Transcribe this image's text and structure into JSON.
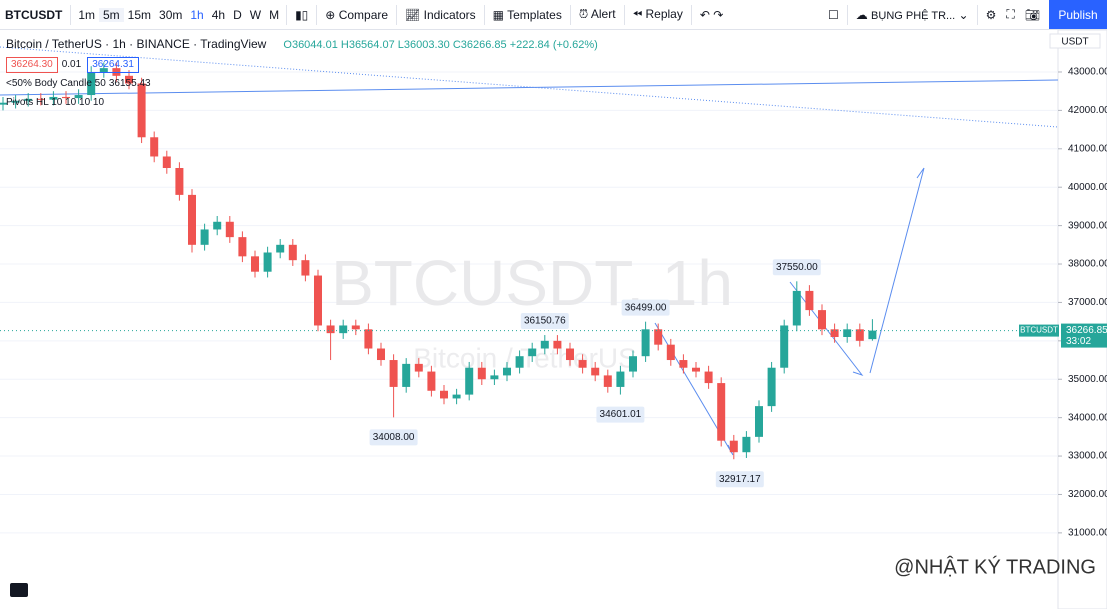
{
  "toolbar": {
    "symbol": "BTCUSDT",
    "intervals": [
      "1m",
      "5m",
      "15m",
      "30m",
      "1h",
      "4h",
      "D",
      "W",
      "M"
    ],
    "compare": "Compare",
    "indicators": "Indicators",
    "templates": "Templates",
    "alert": "Alert",
    "replay": "Replay",
    "layout_name": "BỤNG PHỆ TR...",
    "publish": "Publish"
  },
  "legend": {
    "title": "Bitcoin / TetherUS · 1h · BINANCE · TradingView",
    "ohlc": "O36044.01 H36564.07 L36003.30 C36266.85 +222.84 (+0.62%)",
    "bid": "36264.30",
    "spread": "0.01",
    "ask": "36264.31",
    "indicator1": "<50% Body Candle 50",
    "indicator1_value": "36155.43",
    "indicator2": "Pivots HL 10 10 10 10"
  },
  "watermark": {
    "symbol": "BTCUSDT, 1h",
    "description": "Bitcoin / TetherUS"
  },
  "currency": "USDT",
  "last_price": {
    "symbol": "BTCUSDT",
    "price": "36266.85",
    "countdown": "33:02"
  },
  "footer": "@NHẬT KÝ TRADING",
  "chart_data": {
    "type": "candlestick",
    "ylim": [
      29070,
      44015
    ],
    "grid": true,
    "up_color": "#26a69a",
    "down_color": "#ef5350",
    "yticks": [
      {
        "value": 31000,
        "label": "31000.00"
      },
      {
        "value": 32000,
        "label": "32000.00"
      },
      {
        "value": 33000,
        "label": "33000.00"
      },
      {
        "value": 34000,
        "label": "34000.00"
      },
      {
        "value": 35000,
        "label": "35000.00"
      },
      {
        "value": 36000,
        "label": "36000.00"
      },
      {
        "value": 37000,
        "label": "37000.00"
      },
      {
        "value": 38000,
        "label": "38000.00"
      },
      {
        "value": 39000,
        "label": "39000.00"
      },
      {
        "value": 40000,
        "label": "40000.00"
      },
      {
        "value": 41000,
        "label": "41000.00"
      },
      {
        "value": 42000,
        "label": "42000.00"
      },
      {
        "value": 43000,
        "label": "43000.00"
      }
    ],
    "open": [
      42150,
      42200,
      42250,
      42300,
      42280,
      42350,
      42320,
      42400,
      43000,
      43100,
      42900,
      42700,
      41300,
      40800,
      40500,
      39800,
      38500,
      38900,
      39100,
      38700,
      38200,
      37800,
      38300,
      38500,
      38100,
      37700,
      36400,
      36200,
      36400,
      36300,
      35800,
      35500,
      34800,
      35400,
      35200,
      34700,
      34500,
      34600,
      35300,
      35000,
      35100,
      35300,
      35600,
      35800,
      36000,
      35800,
      35500,
      35300,
      35100,
      34800,
      35200,
      35600,
      36300,
      35900,
      35500,
      35300,
      35200,
      34900,
      33400,
      33100,
      33500,
      34300,
      35300,
      36400,
      37300,
      36800,
      36300,
      36100,
      36300,
      36044.01
    ],
    "high": [
      42350,
      42400,
      42450,
      42450,
      42500,
      42500,
      42550,
      43150,
      43250,
      43250,
      43050,
      42850,
      41450,
      40950,
      40650,
      39950,
      39050,
      39250,
      39250,
      38850,
      38350,
      38450,
      38650,
      38650,
      38250,
      37850,
      36550,
      36550,
      36550,
      36450,
      35950,
      35650,
      35550,
      35550,
      35350,
      34850,
      34750,
      35450,
      35450,
      35250,
      35450,
      35750,
      35950,
      36150.76,
      36150,
      35950,
      35650,
      35450,
      35250,
      35350,
      35750,
      36499,
      36450,
      36050,
      35650,
      35450,
      35350,
      35050,
      33550,
      33650,
      34450,
      35450,
      36550,
      37550,
      37450,
      36950,
      36450,
      36450,
      36450,
      36564.07
    ],
    "low": [
      42000,
      42050,
      42100,
      42130,
      42130,
      42170,
      42170,
      42250,
      42850,
      42750,
      42550,
      41150,
      40650,
      40350,
      39650,
      38300,
      38350,
      38750,
      38550,
      38050,
      37650,
      37650,
      38150,
      37950,
      37550,
      36250,
      35500,
      36050,
      36150,
      35650,
      35350,
      34008,
      34650,
      35050,
      34550,
      34350,
      34350,
      34450,
      34850,
      34850,
      34950,
      35150,
      35450,
      35650,
      35650,
      35350,
      35150,
      34950,
      34650,
      34601.01,
      35050,
      35450,
      35750,
      35350,
      35150,
      35050,
      34750,
      33250,
      32917.17,
      32950,
      33350,
      34150,
      35150,
      36250,
      36650,
      36150,
      35950,
      35950,
      35850,
      36003.3
    ],
    "close": [
      42200,
      42250,
      42300,
      42280,
      42350,
      42320,
      42400,
      43000,
      43100,
      42900,
      42700,
      41300,
      40800,
      40500,
      39800,
      38500,
      38900,
      39100,
      38700,
      38200,
      37800,
      38300,
      38500,
      38100,
      37700,
      36400,
      36200,
      36400,
      36300,
      35800,
      35500,
      34800,
      35400,
      35200,
      34700,
      34500,
      34600,
      35300,
      35000,
      35100,
      35300,
      35600,
      35800,
      36000,
      35800,
      35500,
      35300,
      35100,
      34800,
      35200,
      35600,
      36300,
      35900,
      35500,
      35300,
      35200,
      34900,
      33400,
      33100,
      33500,
      34300,
      35300,
      36400,
      37300,
      36800,
      36300,
      36100,
      36300,
      36000,
      36266.85
    ],
    "annotations": [
      {
        "value": 34008,
        "label": "34008.00"
      },
      {
        "value": 36150.76,
        "label": "36150.76"
      },
      {
        "value": 36499,
        "label": "36499.00"
      },
      {
        "value": 34601.01,
        "label": "34601.01"
      },
      {
        "value": 32917.17,
        "label": "32917.17"
      },
      {
        "value": 37550,
        "label": "37550.00"
      }
    ]
  }
}
